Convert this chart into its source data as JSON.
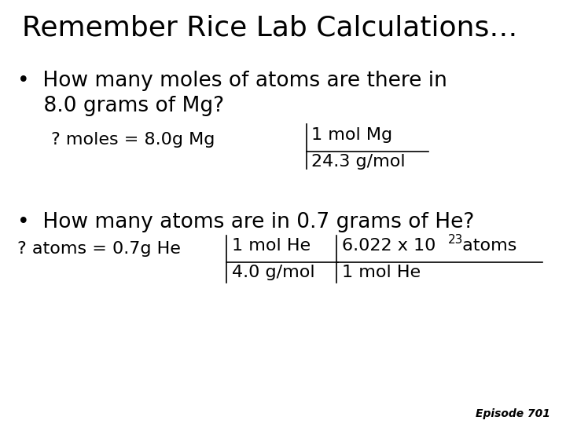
{
  "title": "Remember Rice Lab Calculations…",
  "bg_color": "#ffffff",
  "text_color": "#000000",
  "font_family": "Comic Sans MS",
  "title_fontsize": 26,
  "body_fontsize": 19,
  "small_fontsize": 16,
  "episode": "Episode 701",
  "bullet1_line1": "•  How many moles of atoms are there in",
  "bullet1_line2": "    8.0 grams of Mg?",
  "eq1_prefix": "? moles = 8.0g Mg",
  "eq1_num": "1 mol Mg",
  "eq1_den": "24.3 g/mol",
  "bullet2_line1": "•  How many atoms are in 0.7 grams of He?",
  "eq2_prefix": "? atoms = 0.7g He",
  "eq2_num1": "1 mol He",
  "eq2_den1": "4.0 g/mol",
  "eq2_num2": "6.022 x 10",
  "eq2_exp": "23",
  "eq2_num2_suffix": " atoms",
  "eq2_den2": "1 mol He"
}
